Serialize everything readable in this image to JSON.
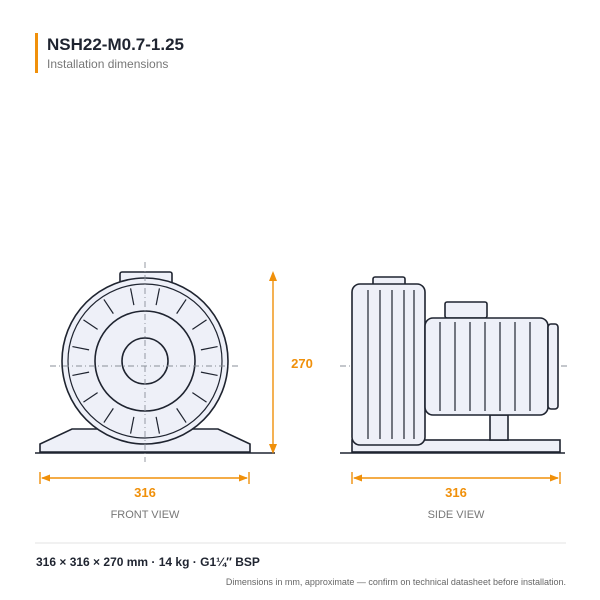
{
  "header": {
    "title": "NSH22-M0.7-1.25",
    "subtitle": "Installation dimensions"
  },
  "dimensions": {
    "height": "270",
    "front_width": "316",
    "side_width": "316"
  },
  "views": {
    "front": "FRONT VIEW",
    "side": "SIDE VIEW"
  },
  "specs": "316 × 316 × 270 mm  ·  14 kg  ·  G1¼″ BSP",
  "footnote": "Dimensions in mm, approximate — confirm on technical datasheet before installation."
}
